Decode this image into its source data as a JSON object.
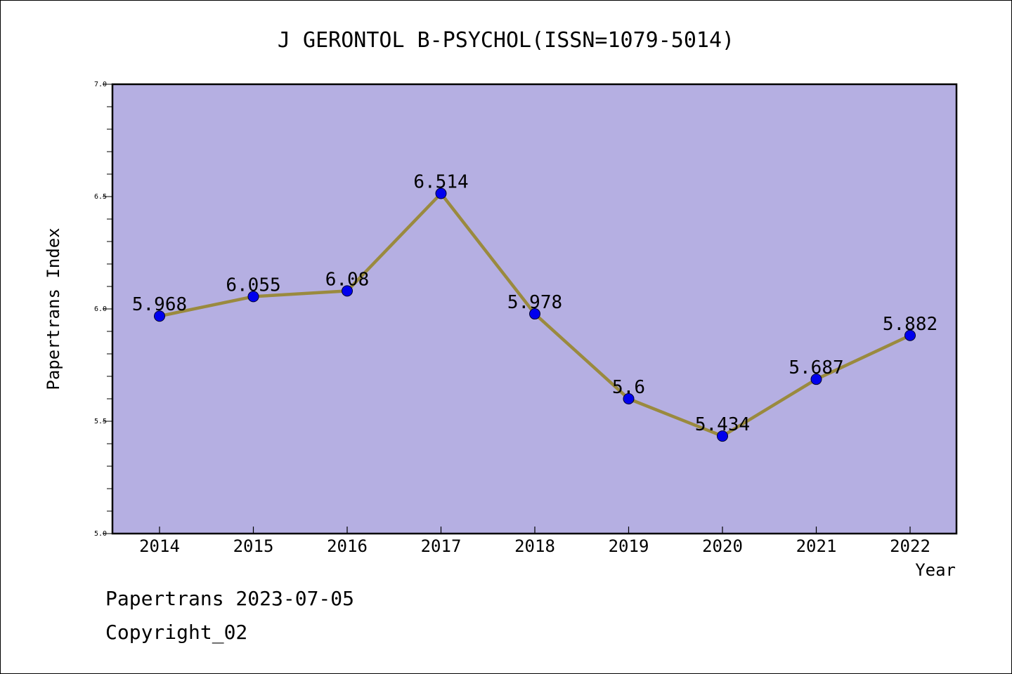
{
  "chart_data": {
    "type": "line",
    "title": "J GERONTOL B-PSYCHOL(ISSN=1079-5014)",
    "xlabel": "Year",
    "ylabel": "Papertrans Index",
    "x": [
      "2014",
      "2015",
      "2016",
      "2017",
      "2018",
      "2019",
      "2020",
      "2021",
      "2022"
    ],
    "values": [
      5.968,
      6.055,
      6.08,
      6.514,
      5.978,
      5.6,
      5.434,
      5.687,
      5.882
    ],
    "data_labels": [
      "5.968",
      "6.055",
      "6.08",
      "6.514",
      "5.978",
      "5.6",
      "5.434",
      "5.687",
      "5.882"
    ],
    "ylim": [
      5.0,
      7.0
    ],
    "yticks": [
      "5.0",
      "5.5",
      "6.0",
      "6.5",
      "7.0"
    ],
    "grid": false,
    "legend": "none",
    "colors": {
      "plot_background": "#b5afe2",
      "line": "#9a8a3e",
      "marker": "#0000ee"
    }
  },
  "footer": {
    "date_line": "Papertrans 2023-07-05",
    "copyright_line": "Copyright_02"
  }
}
